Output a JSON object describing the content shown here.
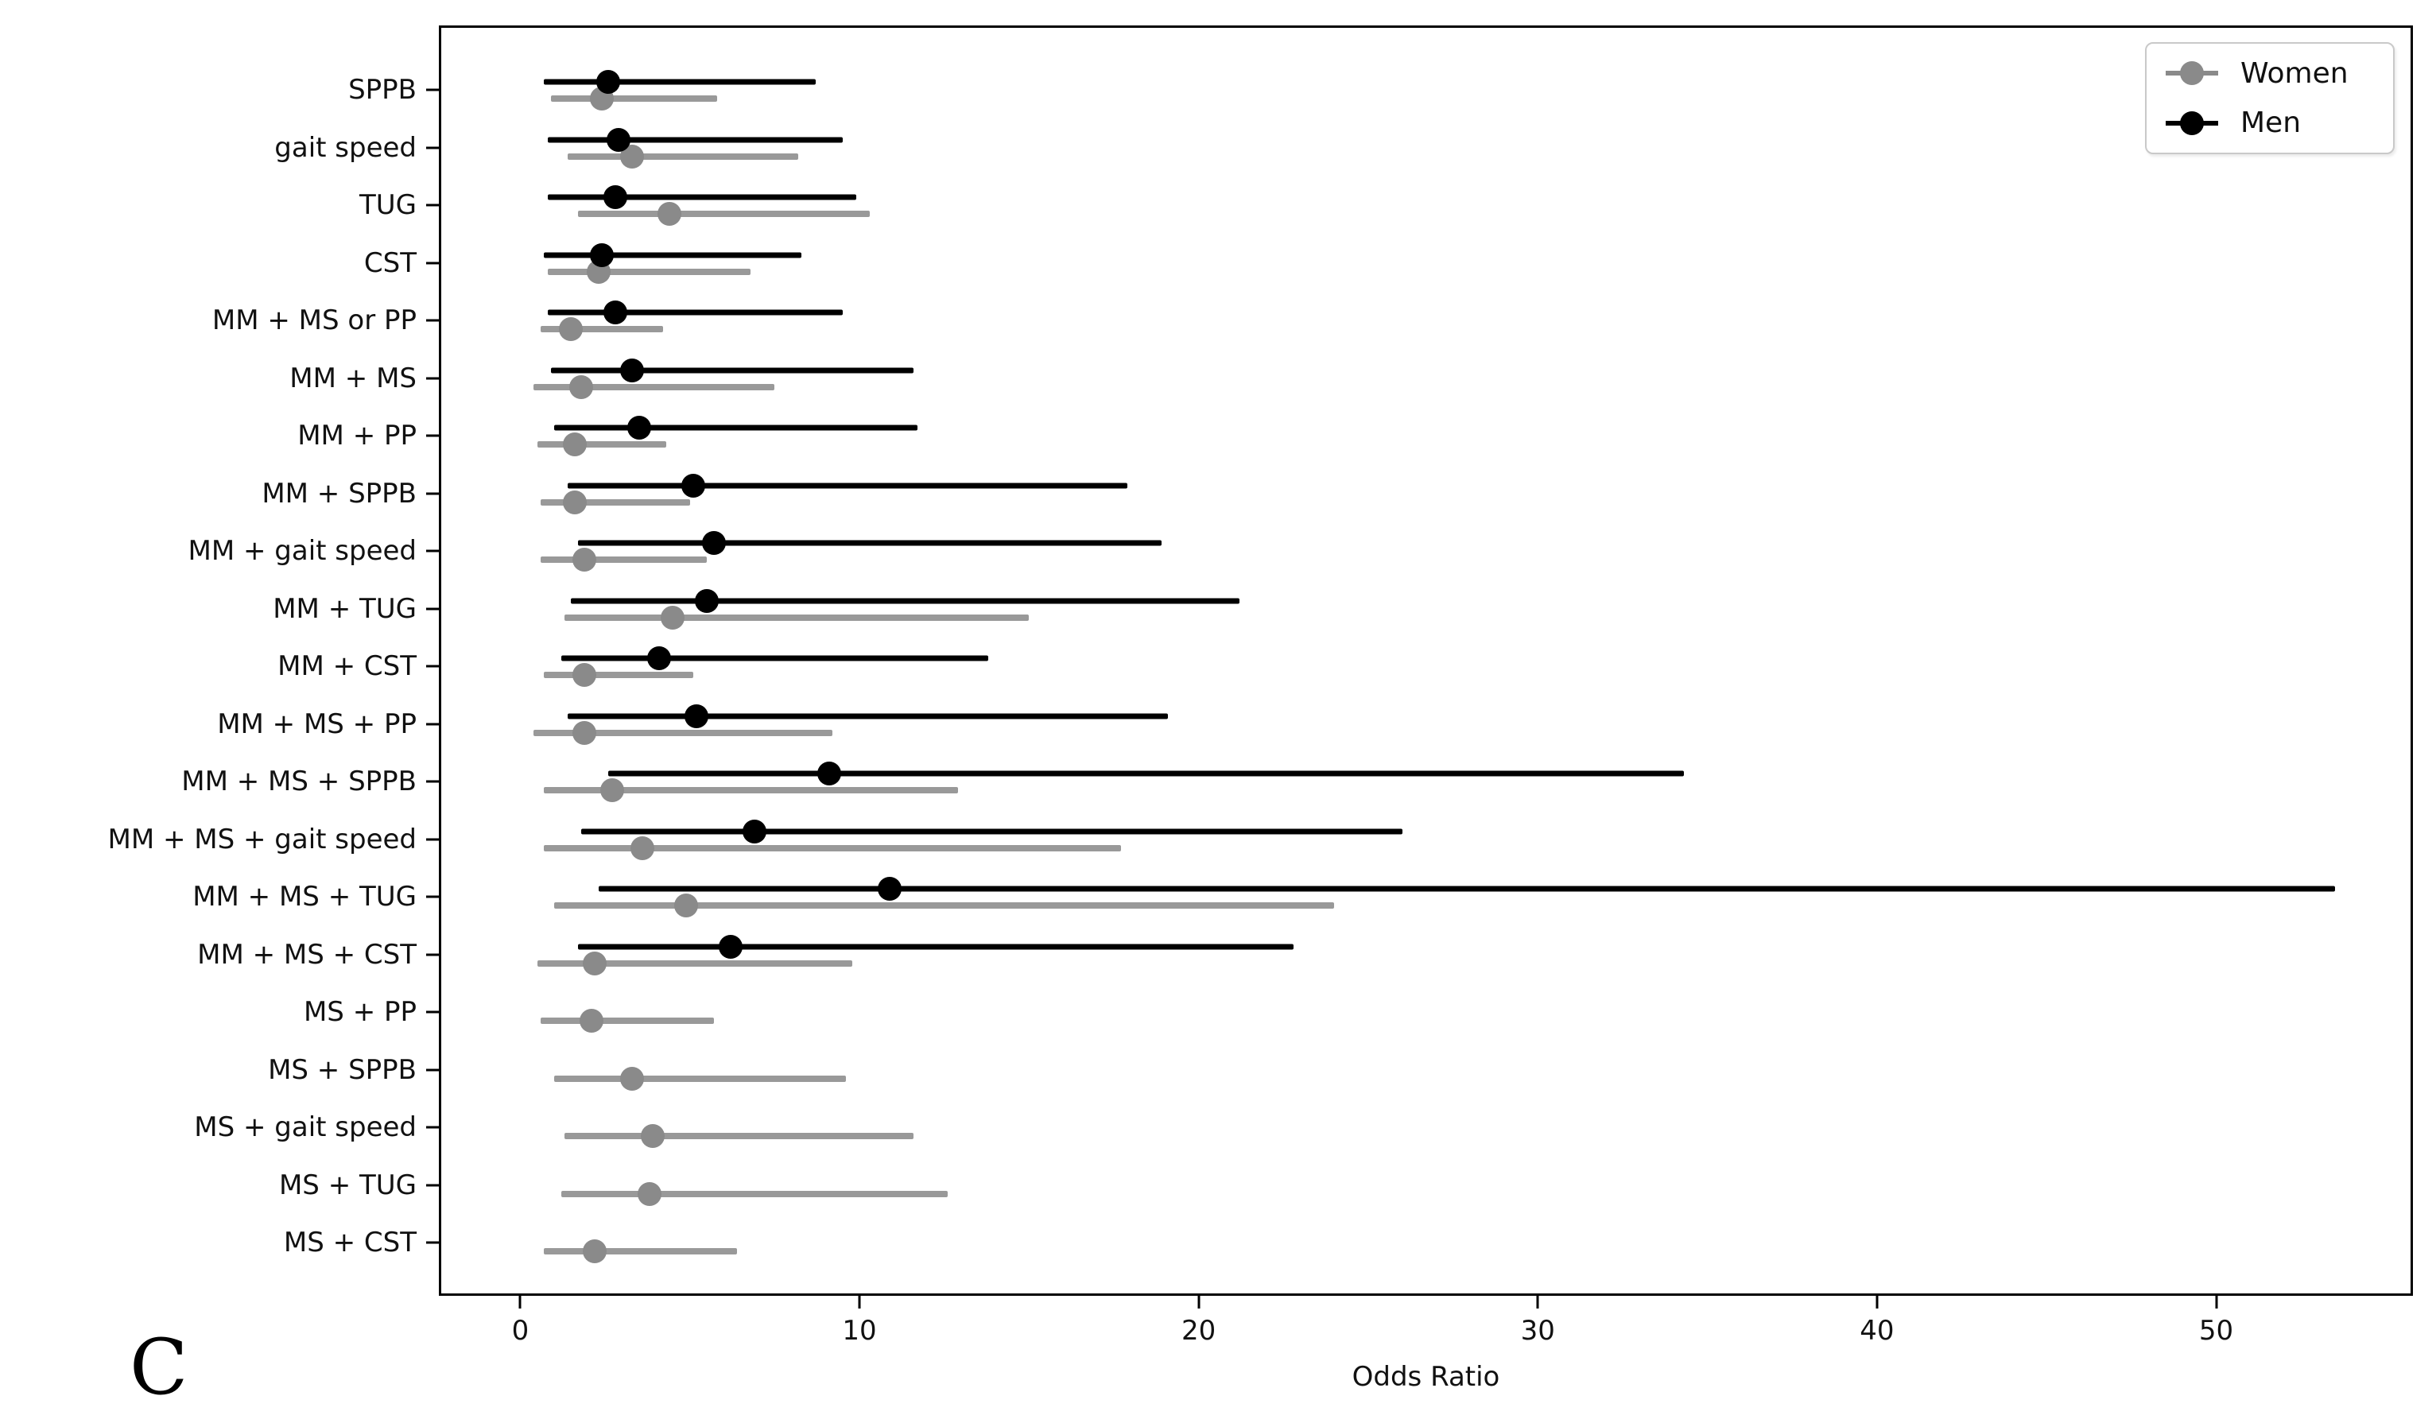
{
  "figure": {
    "panel_label": "C"
  },
  "legend": {
    "position": "upper right",
    "items": [
      {
        "label": "Women",
        "color": "#8a8a8a"
      },
      {
        "label": "Men",
        "color": "#000000"
      }
    ]
  },
  "chart_data": {
    "type": "scatter",
    "subtype": "horizontal-forest-plot-with-error-bars",
    "title": "",
    "xlabel": "Odds Ratio",
    "ylabel": "",
    "xlim": [
      -2.4,
      55.8
    ],
    "x_ticks": [
      0,
      10,
      20,
      30,
      40,
      50
    ],
    "grid": false,
    "legend_position": "upper right",
    "categories": [
      "SPPB",
      "gait speed",
      "TUG",
      "CST",
      "MM + MS or PP",
      "MM + MS",
      "MM + PP",
      "MM + SPPB",
      "MM + gait speed",
      "MM + TUG",
      "MM + CST",
      "MM + MS + PP",
      "MM + MS + SPPB",
      "MM + MS + gait speed",
      "MM + MS + TUG",
      "MM + MS + CST",
      "MS + PP",
      "MS + SPPB",
      "MS + gait speed",
      "MS + TUG",
      "MS + CST"
    ],
    "series": [
      {
        "name": "Women",
        "color": "#8a8a8a",
        "bar_color": "#999999",
        "points": [
          {
            "or": 2.4,
            "lo": 0.9,
            "hi": 5.8
          },
          {
            "or": 3.3,
            "lo": 1.4,
            "hi": 8.2
          },
          {
            "or": 4.4,
            "lo": 1.7,
            "hi": 10.3
          },
          {
            "or": 2.3,
            "lo": 0.8,
            "hi": 6.8
          },
          {
            "or": 1.5,
            "lo": 0.6,
            "hi": 4.2
          },
          {
            "or": 1.8,
            "lo": 0.4,
            "hi": 7.5
          },
          {
            "or": 1.6,
            "lo": 0.5,
            "hi": 4.3
          },
          {
            "or": 1.6,
            "lo": 0.6,
            "hi": 5.0
          },
          {
            "or": 1.9,
            "lo": 0.6,
            "hi": 5.5
          },
          {
            "or": 4.5,
            "lo": 1.3,
            "hi": 15.0
          },
          {
            "or": 1.9,
            "lo": 0.7,
            "hi": 5.1
          },
          {
            "or": 1.9,
            "lo": 0.4,
            "hi": 9.2
          },
          {
            "or": 2.7,
            "lo": 0.7,
            "hi": 12.9
          },
          {
            "or": 3.6,
            "lo": 0.7,
            "hi": 17.7
          },
          {
            "or": 4.9,
            "lo": 1.0,
            "hi": 24.0
          },
          {
            "or": 2.2,
            "lo": 0.5,
            "hi": 9.8
          },
          {
            "or": 2.1,
            "lo": 0.6,
            "hi": 5.7
          },
          {
            "or": 3.3,
            "lo": 1.0,
            "hi": 9.6
          },
          {
            "or": 3.9,
            "lo": 1.3,
            "hi": 11.6
          },
          {
            "or": 3.8,
            "lo": 1.2,
            "hi": 12.6
          },
          {
            "or": 2.2,
            "lo": 0.7,
            "hi": 6.4
          }
        ]
      },
      {
        "name": "Men",
        "color": "#000000",
        "bar_color": "#000000",
        "points": [
          {
            "or": 2.6,
            "lo": 0.7,
            "hi": 8.7
          },
          {
            "or": 2.9,
            "lo": 0.8,
            "hi": 9.5
          },
          {
            "or": 2.8,
            "lo": 0.8,
            "hi": 9.9
          },
          {
            "or": 2.4,
            "lo": 0.7,
            "hi": 8.3
          },
          {
            "or": 2.8,
            "lo": 0.8,
            "hi": 9.5
          },
          {
            "or": 3.3,
            "lo": 0.9,
            "hi": 11.6
          },
          {
            "or": 3.5,
            "lo": 1.0,
            "hi": 11.7
          },
          {
            "or": 5.1,
            "lo": 1.4,
            "hi": 17.9
          },
          {
            "or": 5.7,
            "lo": 1.7,
            "hi": 18.9
          },
          {
            "or": 5.5,
            "lo": 1.5,
            "hi": 21.2
          },
          {
            "or": 4.1,
            "lo": 1.2,
            "hi": 13.8
          },
          {
            "or": 5.2,
            "lo": 1.4,
            "hi": 19.1
          },
          {
            "or": 9.1,
            "lo": 2.6,
            "hi": 34.3
          },
          {
            "or": 6.9,
            "lo": 1.8,
            "hi": 26.0
          },
          {
            "or": 10.9,
            "lo": 2.3,
            "hi": 53.5
          },
          {
            "or": 6.2,
            "lo": 1.7,
            "hi": 22.8
          },
          null,
          null,
          null,
          null,
          null
        ]
      }
    ]
  }
}
